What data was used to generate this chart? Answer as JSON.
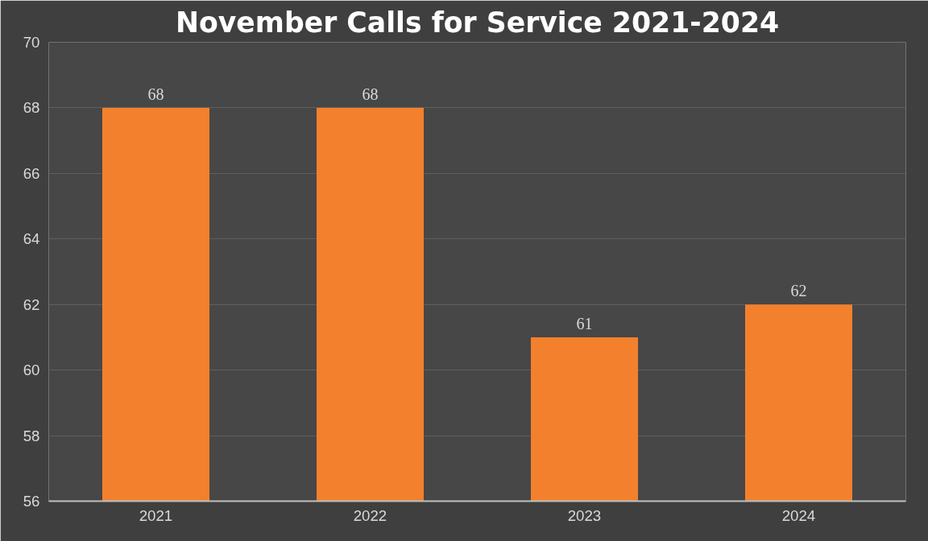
{
  "chart_data": {
    "type": "bar",
    "title": "November Calls for Service 2021-2024",
    "categories": [
      "2021",
      "2022",
      "2023",
      "2024"
    ],
    "values": [
      68,
      68,
      61,
      62
    ],
    "color": "#f3802d",
    "ylim": [
      56,
      70
    ],
    "yticks": [
      56,
      58,
      60,
      62,
      64,
      66,
      68,
      70
    ],
    "grid": "y",
    "data_labels": true
  }
}
